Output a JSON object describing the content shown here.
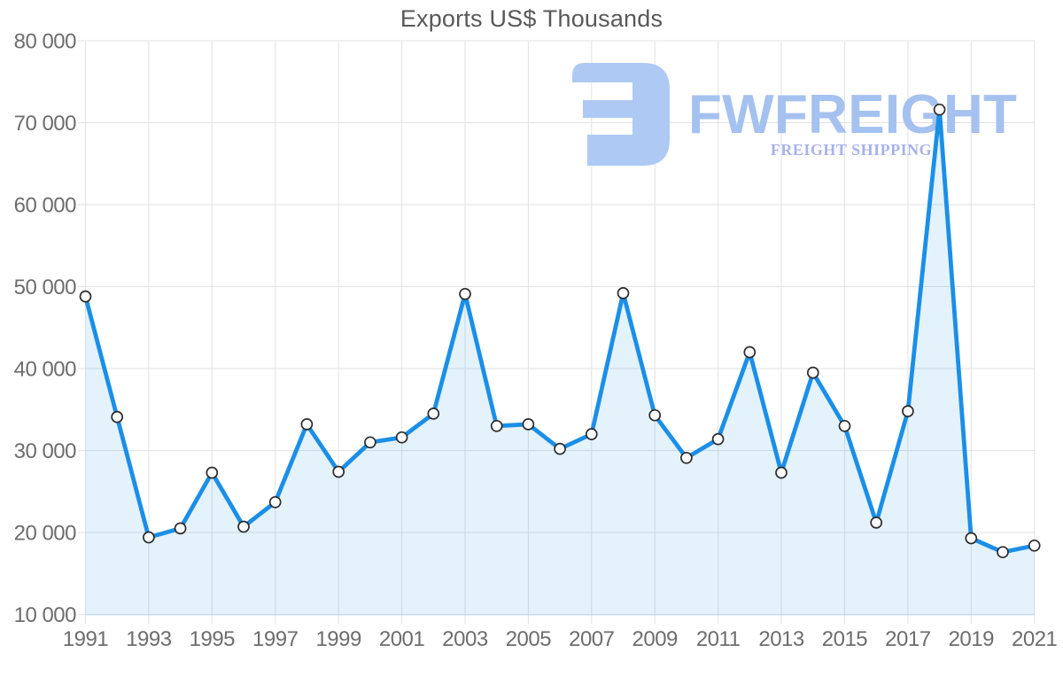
{
  "page": {
    "title": "Exports US$ Thousands"
  },
  "watermark": {
    "brand": "FWFREIGHT",
    "tagline": "FREIGHT SHIPPING",
    "glyph": "fwfreight-logo-mark",
    "glyph_color": "#aec9f3",
    "brand_color": "#a5c1ef",
    "tagline_color": "#a8b2e9"
  },
  "chart_data": {
    "type": "area",
    "title": "Exports US$ Thousands",
    "series_name": "Exports US$ Thousands",
    "x": [
      1991,
      1992,
      1993,
      1994,
      1995,
      1996,
      1997,
      1998,
      1999,
      2000,
      2001,
      2002,
      2003,
      2004,
      2005,
      2006,
      2007,
      2008,
      2009,
      2010,
      2011,
      2012,
      2013,
      2014,
      2015,
      2016,
      2017,
      2018,
      2019,
      2020,
      2021
    ],
    "values": [
      48800,
      34100,
      19400,
      20500,
      27300,
      20700,
      23700,
      33200,
      27400,
      31000,
      31600,
      34500,
      49100,
      33000,
      33200,
      30200,
      32000,
      49200,
      34300,
      29100,
      31400,
      42000,
      27300,
      39500,
      33000,
      21200,
      34800,
      71600,
      19300,
      17600,
      18400
    ],
    "xlim": [
      1991,
      2021
    ],
    "ylim": [
      10000,
      80000
    ],
    "x_ticks": [
      1991,
      1993,
      1995,
      1997,
      1999,
      2001,
      2003,
      2005,
      2007,
      2009,
      2011,
      2013,
      2015,
      2017,
      2019,
      2021
    ],
    "x_tick_labels": [
      "1991",
      "1993",
      "1995",
      "1997",
      "1999",
      "2001",
      "2003",
      "2005",
      "2007",
      "2009",
      "2011",
      "2013",
      "2015",
      "2017",
      "2019",
      "2021"
    ],
    "y_ticks": [
      10000,
      20000,
      30000,
      40000,
      50000,
      60000,
      70000,
      80000
    ],
    "y_tick_labels": [
      "10 000",
      "20 000",
      "30 000",
      "40 000",
      "50 000",
      "60 000",
      "70 000",
      "80 000"
    ],
    "grid": true,
    "legend": false,
    "line_color": "#1b8fe8",
    "fill_color": "rgba(30,144,234,0.12)",
    "marker_fill": "#ffffff",
    "marker_stroke": "#2d2d2d",
    "grid_color": "#e2e2e2",
    "tick_color": "#6d6d6d",
    "title_color": "#595959"
  }
}
